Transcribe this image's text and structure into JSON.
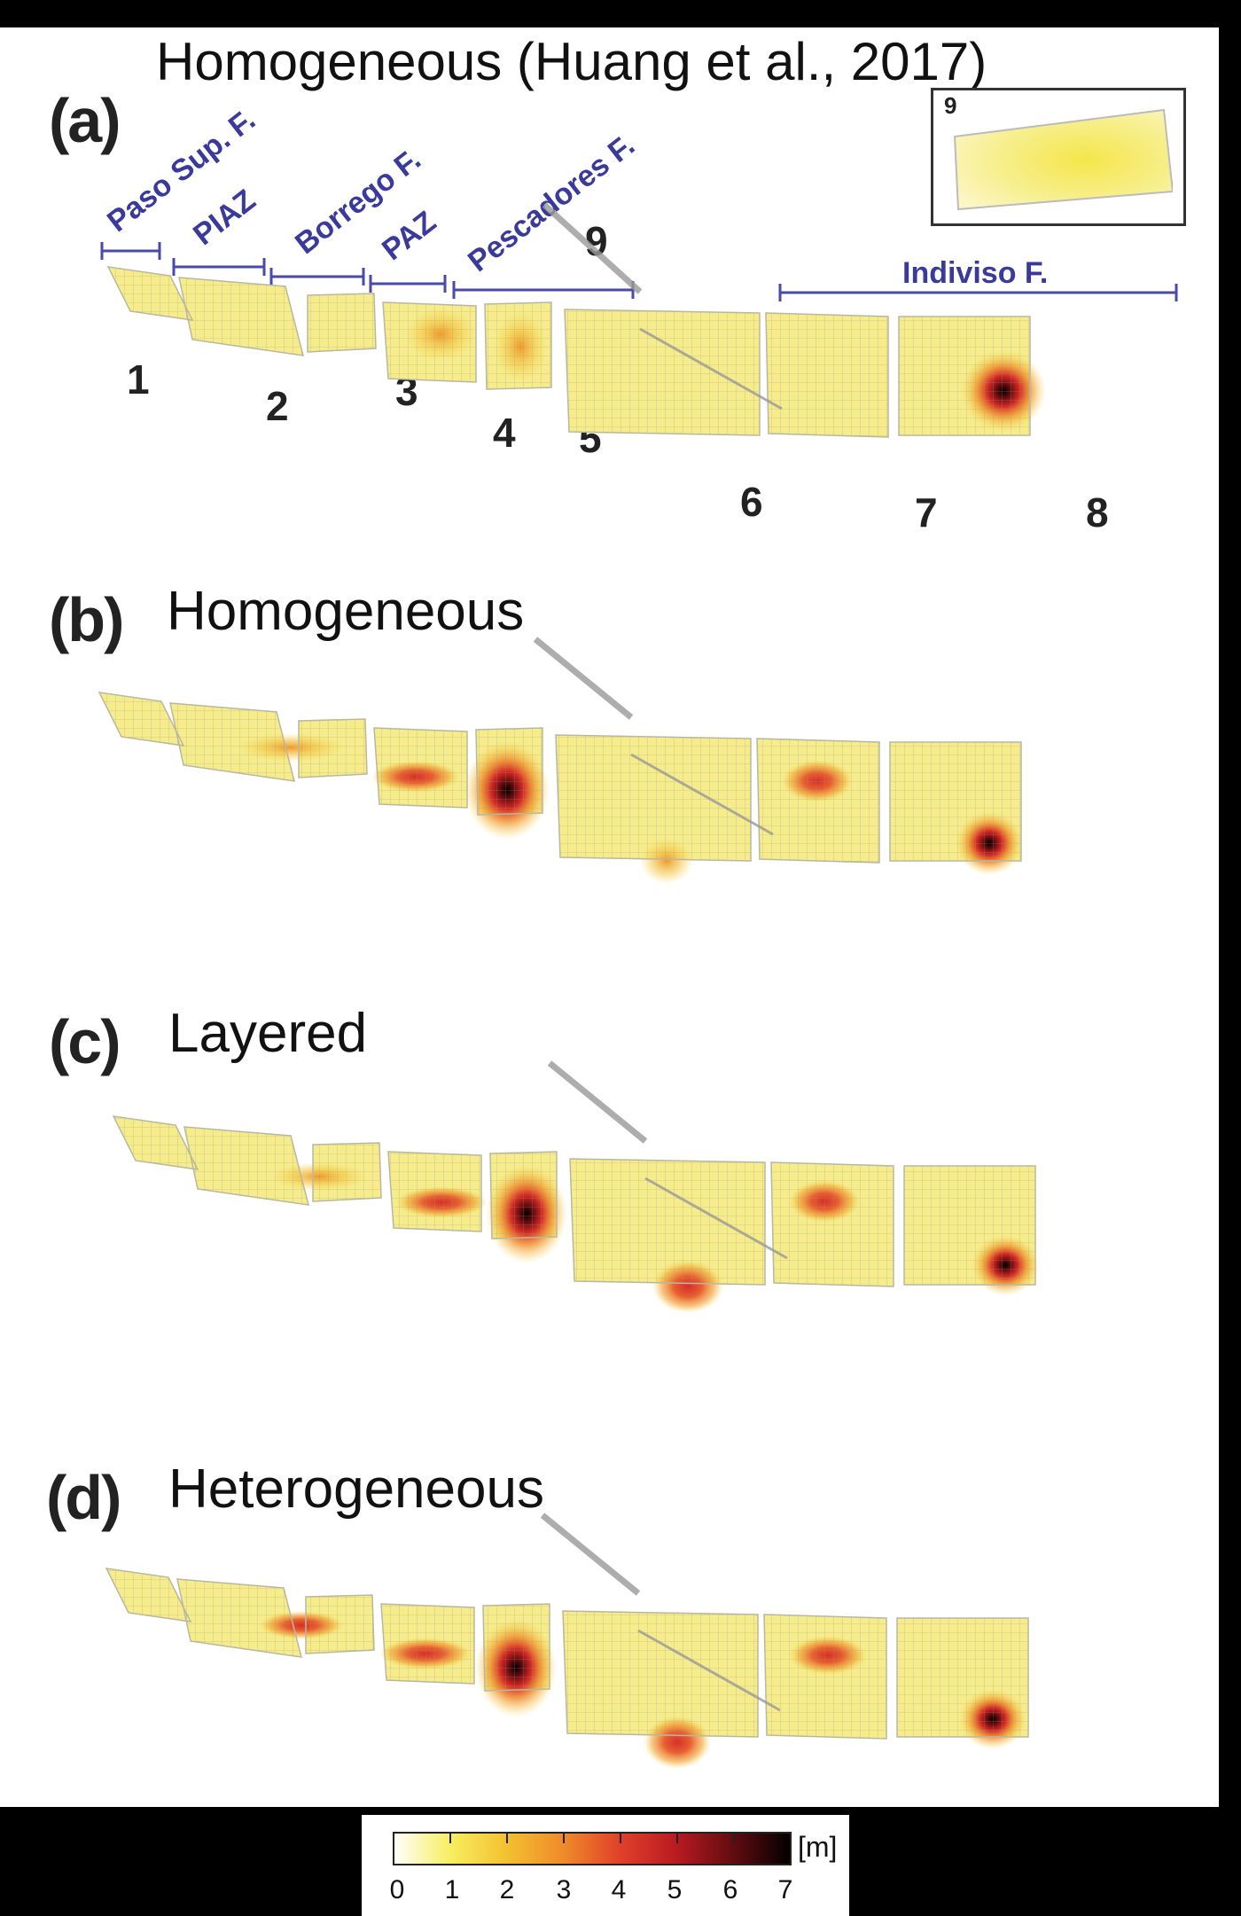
{
  "figure": {
    "title": "Homogeneous (Huang et al., 2017)",
    "panels": [
      {
        "letter": "(a)",
        "subtitle": ""
      },
      {
        "letter": "(b)",
        "subtitle": "Homogeneous"
      },
      {
        "letter": "(c)",
        "subtitle": "Layered"
      },
      {
        "letter": "(d)",
        "subtitle": "Heterogeneous"
      }
    ],
    "segment_labels": [
      "Paso Sup. F.",
      "PIAZ",
      "Borrego F.",
      "PAZ",
      "Pescadores F.",
      "Indiviso F."
    ],
    "fault_numbers": [
      "1",
      "2",
      "3",
      "4",
      "5",
      "6",
      "7",
      "8",
      "9"
    ],
    "inset_label": "9"
  },
  "colorbar": {
    "unit": "[m]",
    "ticks": [
      "0",
      "1",
      "2",
      "3",
      "4",
      "5",
      "6",
      "7"
    ],
    "colors": [
      "#ffffff",
      "#f7ee60",
      "#f3c030",
      "#ef8a2a",
      "#e0402a",
      "#b81a20",
      "#600c10",
      "#000000"
    ]
  }
}
